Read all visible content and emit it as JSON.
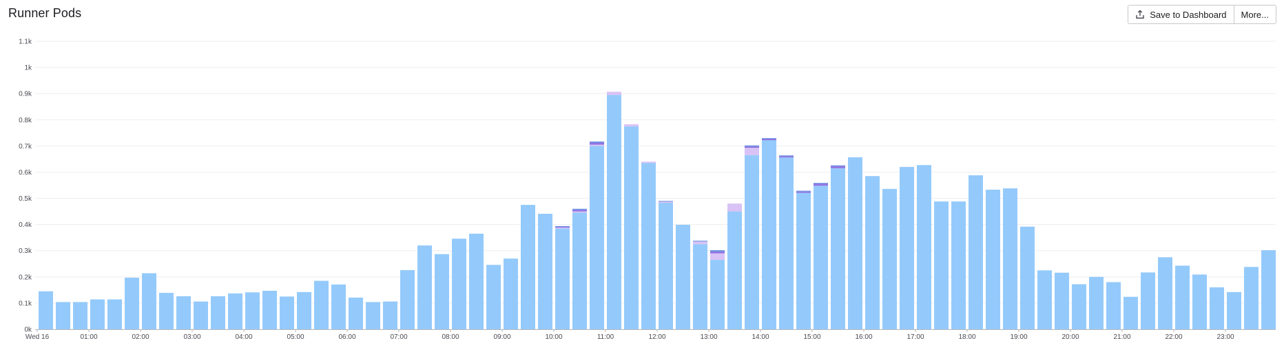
{
  "header": {
    "title": "Runner Pods",
    "save_label": "Save to Dashboard",
    "more_label": "More...",
    "save_icon": "upload-icon"
  },
  "colors": {
    "bar_main": "#94cafb",
    "bar_lavender": "#d9c2f5",
    "bar_purple": "#8f73e3",
    "bar_blue": "#6a8fe0",
    "gridline": "#eeeeef",
    "axis": "#b5b6ba"
  },
  "chart_data": {
    "type": "bar",
    "stacked": true,
    "ylim": [
      0,
      1100
    ],
    "y_ticks": [
      0,
      100,
      200,
      300,
      400,
      500,
      600,
      700,
      800,
      900,
      1000,
      1100
    ],
    "y_tick_labels": [
      "0k",
      "0.1k",
      "0.2k",
      "0.3k",
      "0.4k",
      "0.5k",
      "0.6k",
      "0.7k",
      "0.8k",
      "0.9k",
      "1k",
      "1.1k"
    ],
    "x_tick_labels": [
      "Wed 16",
      "01:00",
      "02:00",
      "03:00",
      "04:00",
      "05:00",
      "06:00",
      "07:00",
      "08:00",
      "09:00",
      "10:00",
      "11:00",
      "12:00",
      "13:00",
      "14:00",
      "15:00",
      "16:00",
      "17:00",
      "18:00",
      "19:00",
      "20:00",
      "21:00",
      "22:00",
      "23:00"
    ],
    "interval_minutes": 20,
    "grid": true,
    "series": [
      {
        "values": [
          145,
          104,
          104,
          114,
          114,
          197,
          214,
          139,
          126,
          106,
          126,
          137,
          141,
          147,
          125,
          142,
          185,
          171,
          121,
          104,
          106,
          226,
          320,
          287,
          346,
          365,
          246,
          270,
          475,
          441,
          385,
          445,
          700,
          895,
          775,
          635,
          483,
          399,
          325,
          265,
          450,
          665,
          722,
          656,
          521,
          548,
          615,
          657,
          585,
          536,
          620,
          627,
          488,
          488,
          588,
          533,
          538,
          392,
          225,
          216,
          172,
          200,
          180,
          124,
          217,
          275,
          243,
          209,
          160,
          142,
          238,
          302
        ]
      },
      {
        "values": [
          0,
          0,
          0,
          0,
          0,
          0,
          0,
          0,
          0,
          0,
          0,
          0,
          0,
          0,
          0,
          0,
          0,
          0,
          0,
          0,
          0,
          0,
          0,
          0,
          0,
          0,
          0,
          0,
          0,
          0,
          3,
          5,
          5,
          12,
          8,
          5,
          5,
          0,
          10,
          25,
          30,
          28,
          0,
          0,
          0,
          0,
          0,
          0,
          0,
          0,
          0,
          0,
          0,
          0,
          0,
          0,
          0,
          0,
          0,
          0,
          0,
          0,
          0,
          0,
          0,
          0,
          0,
          0,
          0,
          0,
          0,
          0
        ]
      },
      {
        "values": [
          0,
          0,
          0,
          0,
          0,
          0,
          0,
          0,
          0,
          0,
          0,
          0,
          0,
          0,
          0,
          0,
          0,
          0,
          0,
          0,
          0,
          0,
          0,
          0,
          0,
          0,
          0,
          0,
          0,
          0,
          4,
          6,
          8,
          0,
          0,
          0,
          0,
          0,
          0,
          7,
          0,
          5,
          5,
          5,
          5,
          8,
          8,
          0,
          0,
          0,
          0,
          0,
          0,
          0,
          0,
          0,
          0,
          0,
          0,
          0,
          0,
          0,
          0,
          0,
          0,
          0,
          0,
          0,
          0,
          0,
          0,
          0
        ]
      },
      {
        "values": [
          0,
          0,
          0,
          0,
          0,
          0,
          0,
          0,
          0,
          0,
          0,
          0,
          0,
          0,
          0,
          0,
          0,
          0,
          0,
          0,
          0,
          0,
          0,
          0,
          0,
          0,
          0,
          0,
          0,
          0,
          2,
          4,
          4,
          0,
          0,
          0,
          2,
          0,
          3,
          5,
          0,
          4,
          3,
          3,
          3,
          3,
          3,
          0,
          0,
          0,
          0,
          0,
          0,
          0,
          0,
          0,
          0,
          0,
          0,
          0,
          0,
          0,
          0,
          0,
          0,
          0,
          0,
          0,
          0,
          0,
          0,
          0
        ]
      }
    ]
  }
}
